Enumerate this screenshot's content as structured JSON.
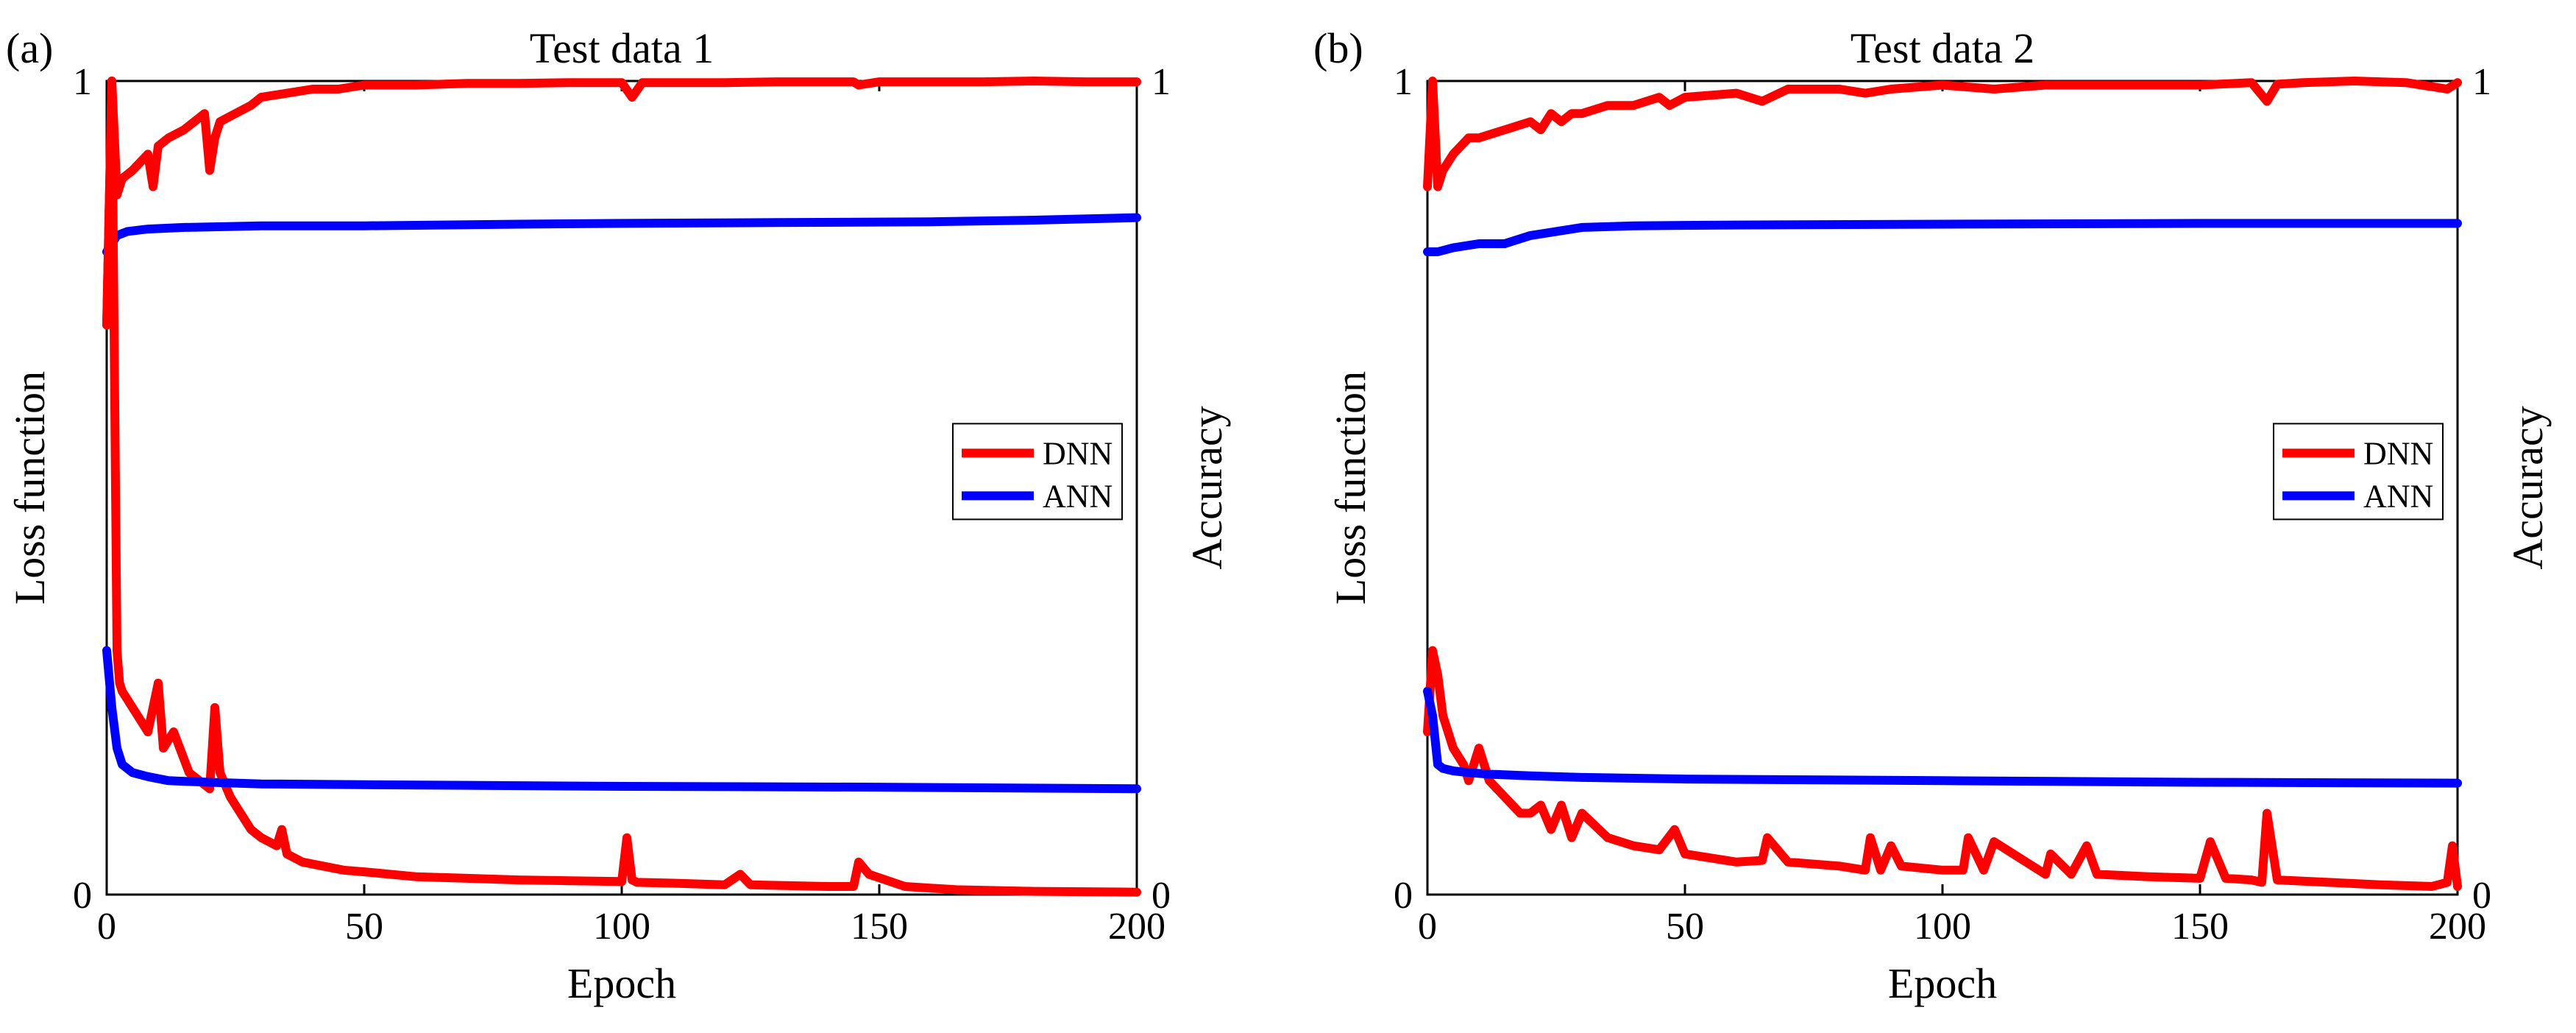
{
  "chart_data": [
    {
      "type": "line",
      "panel_label": "(a)",
      "title": "Test data 1",
      "xlabel": "Epoch",
      "ylabel_left": "Loss function",
      "ylabel_right": "Accuracy",
      "xlim": [
        0,
        200
      ],
      "ylim": [
        0,
        1
      ],
      "x_ticks": [
        "0",
        "50",
        "100",
        "150",
        "200"
      ],
      "y_ticks_left": [
        "0",
        "1"
      ],
      "y_ticks_right": [
        "0",
        "1"
      ],
      "legend_position": "center-right",
      "colors": {
        "DNN": "#ff0000",
        "ANN": "#0000ff"
      },
      "legend": [
        "DNN",
        "ANN"
      ],
      "series": [
        {
          "name": "DNN",
          "metric": "accuracy",
          "x": [
            0,
            1,
            2,
            3,
            5,
            8,
            9,
            10,
            12,
            15,
            17,
            19,
            20,
            21,
            22,
            25,
            28,
            30,
            35,
            40,
            45,
            50,
            60,
            70,
            80,
            90,
            100,
            102,
            104,
            110,
            120,
            130,
            140,
            145,
            146,
            150,
            160,
            170,
            180,
            190,
            200
          ],
          "y": [
            0.7,
            1.0,
            0.86,
            0.88,
            0.89,
            0.91,
            0.87,
            0.92,
            0.93,
            0.94,
            0.95,
            0.96,
            0.89,
            0.93,
            0.95,
            0.96,
            0.97,
            0.98,
            0.985,
            0.99,
            0.99,
            0.995,
            0.995,
            0.997,
            0.997,
            0.998,
            0.998,
            0.98,
            0.998,
            0.998,
            0.998,
            0.999,
            0.999,
            0.999,
            0.995,
            0.999,
            0.999,
            0.999,
            1.0,
            0.999,
            0.999
          ]
        },
        {
          "name": "ANN",
          "metric": "accuracy",
          "x": [
            0,
            1,
            2,
            4,
            8,
            15,
            30,
            50,
            80,
            100,
            130,
            160,
            180,
            200
          ],
          "y": [
            0.79,
            0.8,
            0.81,
            0.815,
            0.818,
            0.82,
            0.822,
            0.822,
            0.824,
            0.825,
            0.826,
            0.827,
            0.829,
            0.832
          ]
        },
        {
          "name": "DNN",
          "metric": "loss",
          "x": [
            0,
            1,
            2,
            2.5,
            3,
            4,
            6,
            8,
            10,
            11,
            13,
            16,
            18,
            20,
            21,
            22,
            24,
            26,
            28,
            30,
            33,
            34,
            35,
            38,
            42,
            46,
            50,
            60,
            70,
            80,
            90,
            100,
            101,
            102,
            103,
            110,
            120,
            123,
            125,
            140,
            145,
            146,
            148,
            155,
            165,
            180,
            200
          ],
          "y": [
            0.7,
            1.0,
            0.3,
            0.26,
            0.25,
            0.24,
            0.22,
            0.2,
            0.26,
            0.18,
            0.2,
            0.15,
            0.14,
            0.13,
            0.23,
            0.15,
            0.12,
            0.1,
            0.08,
            0.07,
            0.06,
            0.08,
            0.05,
            0.04,
            0.035,
            0.03,
            0.028,
            0.022,
            0.02,
            0.018,
            0.017,
            0.016,
            0.07,
            0.018,
            0.015,
            0.014,
            0.012,
            0.025,
            0.012,
            0.01,
            0.01,
            0.04,
            0.025,
            0.01,
            0.006,
            0.004,
            0.003
          ]
        },
        {
          "name": "ANN",
          "metric": "loss",
          "x": [
            0,
            1,
            2,
            3,
            5,
            8,
            12,
            20,
            30,
            50,
            100,
            150,
            200
          ],
          "y": [
            0.3,
            0.23,
            0.18,
            0.16,
            0.15,
            0.145,
            0.14,
            0.138,
            0.136,
            0.135,
            0.133,
            0.132,
            0.13
          ]
        }
      ]
    },
    {
      "type": "line",
      "panel_label": "(b)",
      "title": "Test data 2",
      "xlabel": "Epoch",
      "ylabel_left": "Loss function",
      "ylabel_right": "Accuracy",
      "xlim": [
        0,
        200
      ],
      "ylim": [
        0,
        1
      ],
      "x_ticks": [
        "0",
        "50",
        "100",
        "150",
        "200"
      ],
      "y_ticks_left": [
        "0",
        "1"
      ],
      "y_ticks_right": [
        "0",
        "1"
      ],
      "legend_position": "center-right",
      "colors": {
        "DNN": "#ff0000",
        "ANN": "#0000ff"
      },
      "legend": [
        "DNN",
        "ANN"
      ],
      "series": [
        {
          "name": "DNN",
          "metric": "accuracy",
          "x": [
            0,
            1,
            2,
            3,
            5,
            8,
            10,
            15,
            20,
            22,
            24,
            26,
            28,
            30,
            35,
            40,
            45,
            47,
            50,
            60,
            65,
            70,
            80,
            85,
            90,
            100,
            110,
            120,
            130,
            140,
            150,
            160,
            163,
            165,
            170,
            180,
            190,
            198,
            200
          ],
          "y": [
            0.87,
            1.0,
            0.87,
            0.89,
            0.91,
            0.93,
            0.93,
            0.94,
            0.95,
            0.94,
            0.96,
            0.95,
            0.96,
            0.96,
            0.97,
            0.97,
            0.98,
            0.97,
            0.98,
            0.985,
            0.975,
            0.99,
            0.99,
            0.985,
            0.99,
            0.995,
            0.99,
            0.995,
            0.995,
            0.995,
            0.995,
            0.998,
            0.975,
            0.996,
            0.998,
            1.0,
            0.998,
            0.99,
            0.998
          ]
        },
        {
          "name": "ANN",
          "metric": "accuracy",
          "x": [
            0,
            1,
            2,
            5,
            10,
            15,
            20,
            25,
            30,
            40,
            60,
            100,
            150,
            200
          ],
          "y": [
            0.79,
            0.79,
            0.79,
            0.795,
            0.8,
            0.8,
            0.81,
            0.815,
            0.82,
            0.822,
            0.823,
            0.824,
            0.825,
            0.825
          ]
        },
        {
          "name": "DNN",
          "metric": "loss",
          "x": [
            0,
            1,
            2,
            3,
            5,
            7,
            8,
            10,
            12,
            15,
            18,
            20,
            22,
            24,
            26,
            28,
            30,
            35,
            40,
            45,
            48,
            50,
            55,
            60,
            65,
            66,
            70,
            80,
            85,
            86,
            88,
            90,
            92,
            100,
            104,
            105,
            108,
            110,
            120,
            121,
            125,
            128,
            130,
            140,
            150,
            152,
            155,
            160,
            162,
            163,
            165,
            175,
            185,
            195,
            198,
            199,
            200
          ],
          "y": [
            0.2,
            0.3,
            0.27,
            0.22,
            0.18,
            0.16,
            0.14,
            0.18,
            0.14,
            0.12,
            0.1,
            0.1,
            0.11,
            0.08,
            0.11,
            0.07,
            0.1,
            0.07,
            0.06,
            0.055,
            0.08,
            0.05,
            0.045,
            0.04,
            0.042,
            0.07,
            0.04,
            0.035,
            0.03,
            0.07,
            0.03,
            0.06,
            0.035,
            0.03,
            0.03,
            0.07,
            0.03,
            0.065,
            0.025,
            0.05,
            0.025,
            0.06,
            0.025,
            0.022,
            0.02,
            0.065,
            0.02,
            0.018,
            0.015,
            0.1,
            0.018,
            0.015,
            0.012,
            0.01,
            0.015,
            0.06,
            0.01
          ]
        },
        {
          "name": "ANN",
          "metric": "loss",
          "x": [
            0,
            1,
            2,
            3,
            5,
            8,
            12,
            20,
            30,
            50,
            100,
            150,
            200
          ],
          "y": [
            0.25,
            0.22,
            0.16,
            0.155,
            0.152,
            0.15,
            0.148,
            0.146,
            0.144,
            0.142,
            0.14,
            0.138,
            0.137
          ]
        }
      ]
    }
  ]
}
